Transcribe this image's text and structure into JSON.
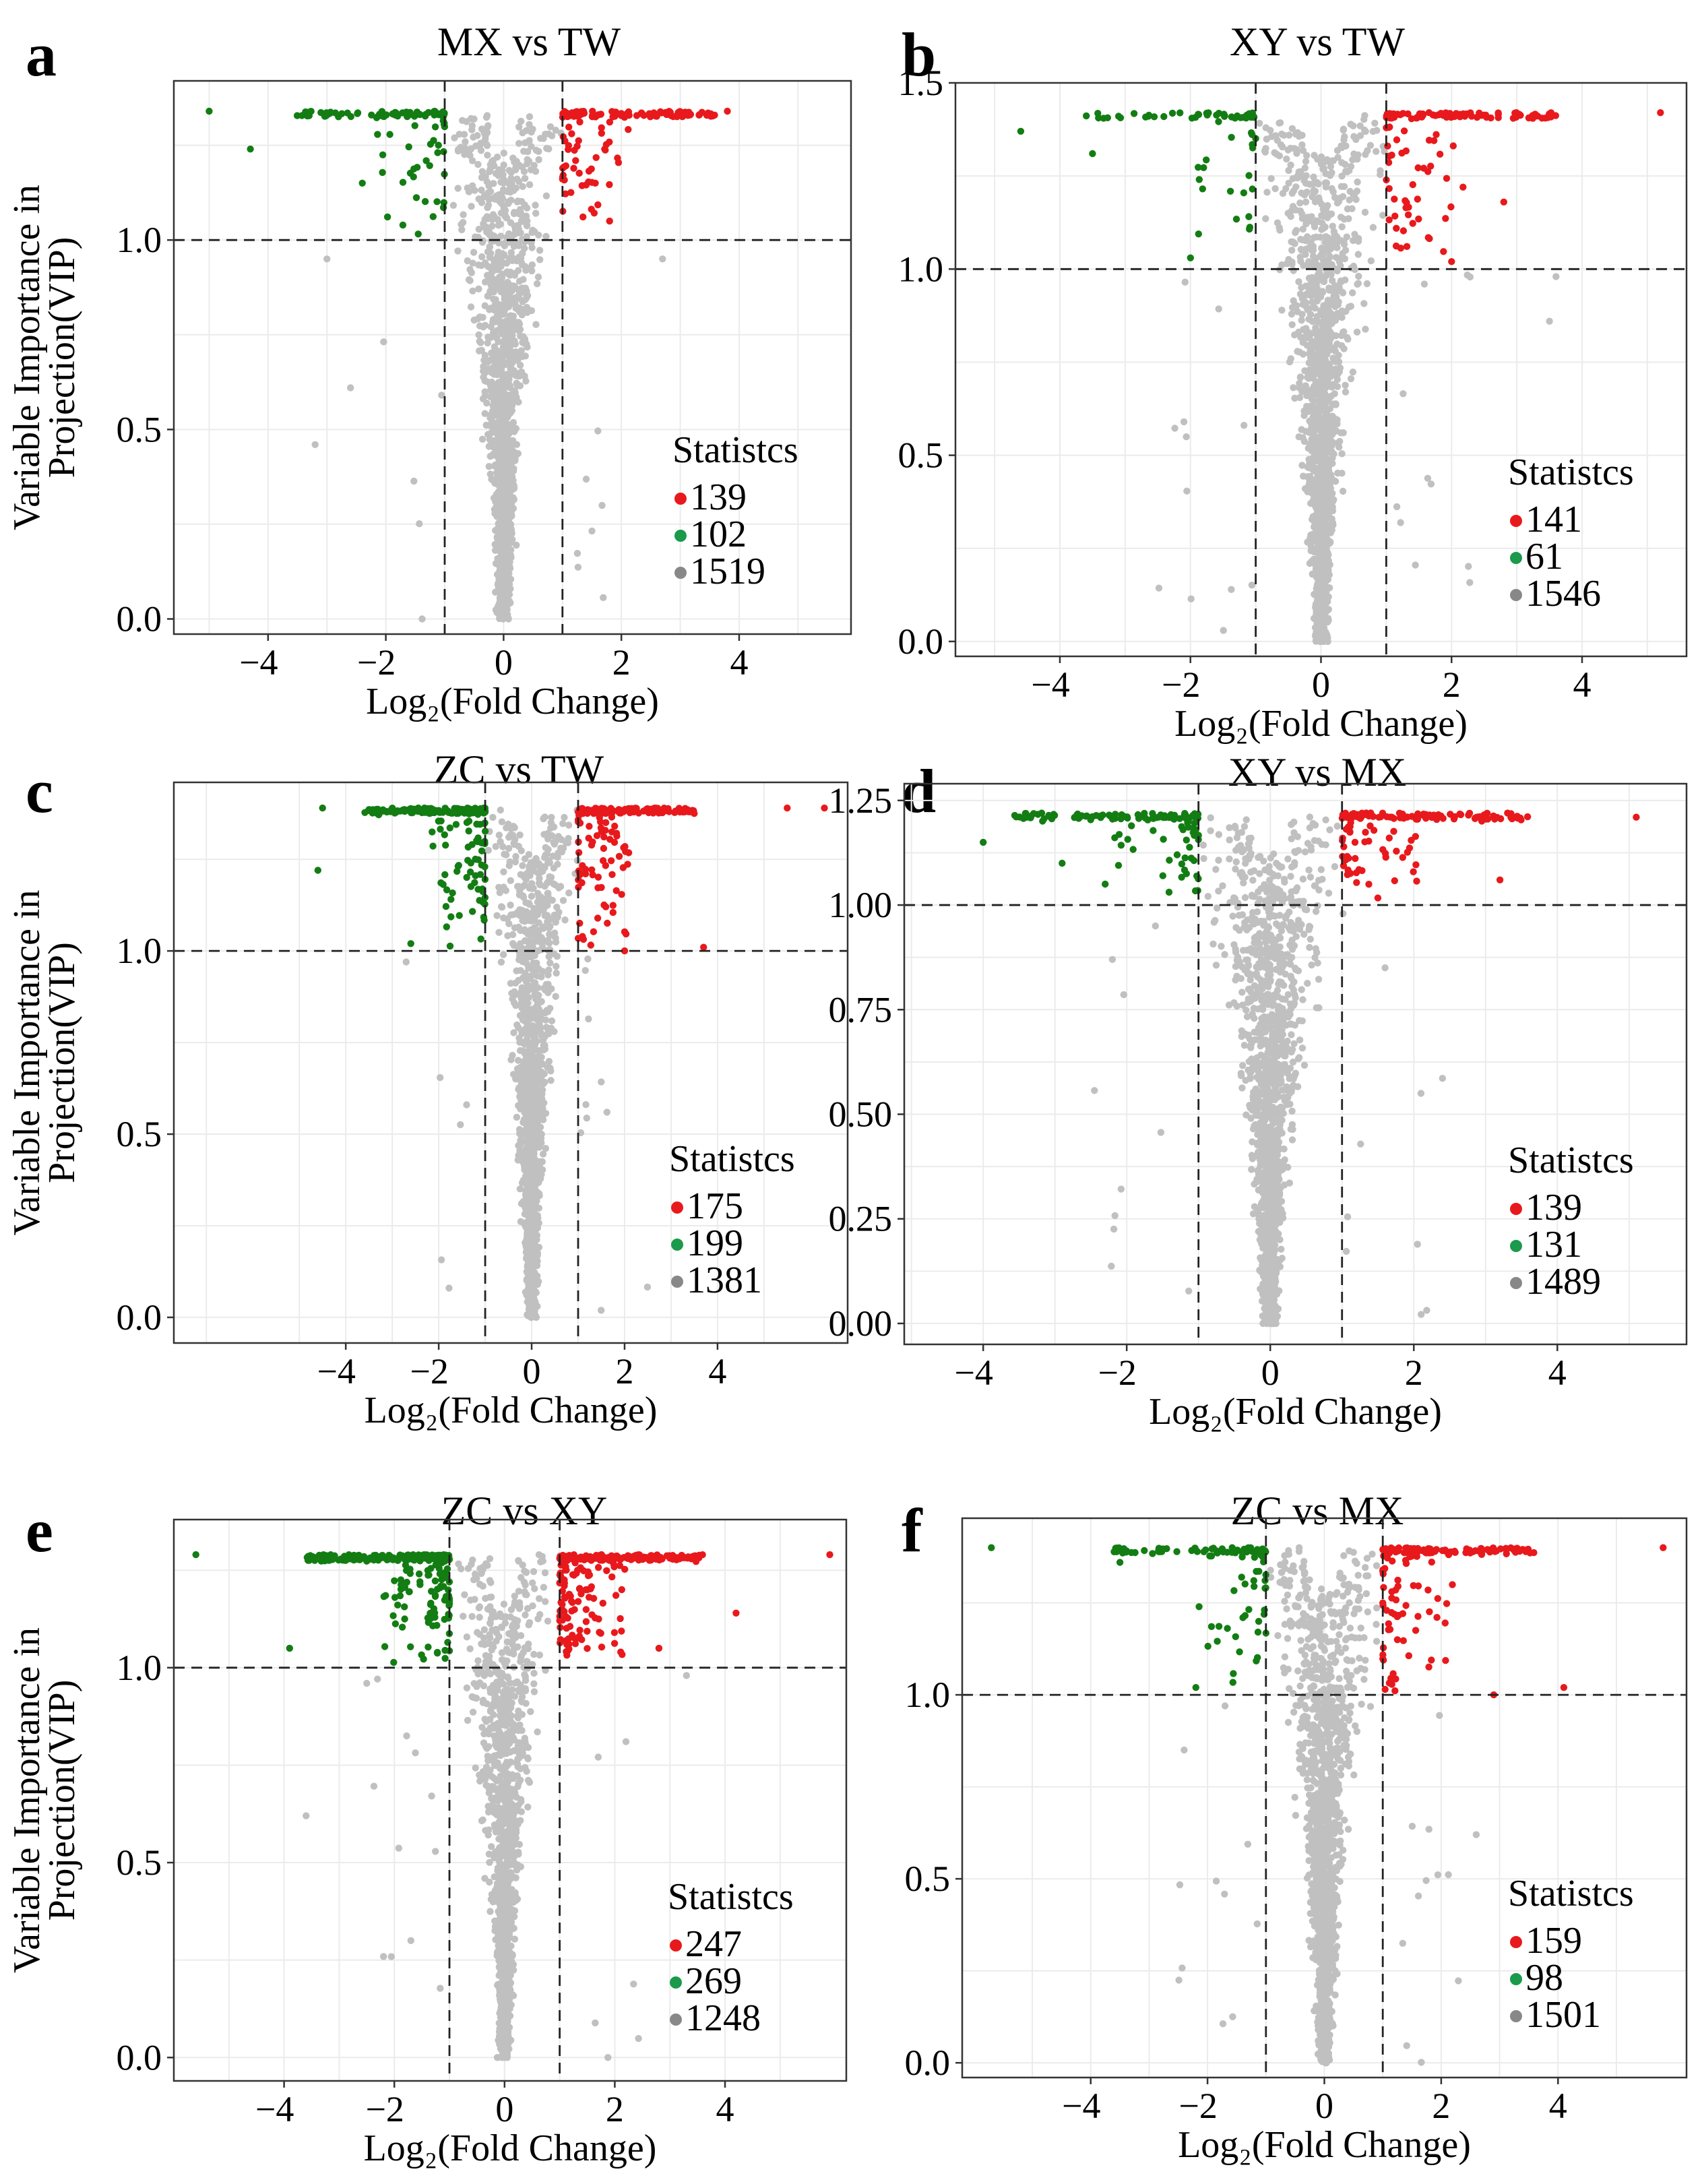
{
  "figure": {
    "point_colors": {
      "up": "#e8191c",
      "down": "#137d13",
      "nosig": "#c0c0c0"
    },
    "legend_dot_colors": {
      "up": "#e8191c",
      "down": "#1a9a4a",
      "nosig": "#888888"
    }
  },
  "chart_data": [
    {
      "panel": "a",
      "type": "scatter",
      "title": "MX vs TW",
      "xlabel": "Log₂(Fold Change)",
      "ylabel": [
        "Variable Importance in",
        "Projection(VIP)"
      ],
      "xlim": [
        -5.6,
        5.9
      ],
      "ylim": [
        -0.04,
        1.42
      ],
      "xticks": [
        -4,
        -2,
        0,
        2,
        4
      ],
      "yticks": [
        0.0,
        0.5,
        1.0
      ],
      "ytick_labels": [
        "0.0",
        "0.5",
        "1.0"
      ],
      "xgrid_minor": [
        -5,
        -3,
        -1,
        1,
        3,
        5
      ],
      "ygrid_minor": [
        0.25,
        0.75,
        1.25
      ],
      "thresholds": {
        "log2fc": [
          -1,
          1
        ],
        "vip": 1.0
      },
      "vip_max": 1.34,
      "legend": {
        "title": "Statistcs",
        "up": "139",
        "down": "102",
        "nosig": "1519",
        "position": "bottom-right"
      },
      "counts": {
        "up": 139,
        "down": 102,
        "nosig": 1519
      },
      "outliers": [
        {
          "x": -5.0,
          "y": 1.34,
          "group": "down"
        },
        {
          "x": -4.3,
          "y": 1.24,
          "group": "down"
        },
        {
          "x": -2.4,
          "y": 1.15,
          "group": "down"
        },
        {
          "x": -3.0,
          "y": 0.95,
          "group": "nosig"
        },
        {
          "x": -3.2,
          "y": 0.46,
          "group": "nosig"
        },
        {
          "x": -2.6,
          "y": 0.61,
          "group": "nosig"
        },
        {
          "x": 3.8,
          "y": 1.34,
          "group": "up"
        },
        {
          "x": 1.8,
          "y": 1.05,
          "group": "up"
        },
        {
          "x": 2.7,
          "y": 0.95,
          "group": "nosig"
        }
      ]
    },
    {
      "panel": "b",
      "type": "scatter",
      "title": "XY vs TW",
      "xlabel": "Log₂(Fold Change)",
      "ylabel": [],
      "xlim": [
        -5.6,
        5.6
      ],
      "ylim": [
        -0.04,
        1.5
      ],
      "xticks": [
        -4,
        -2,
        0,
        2,
        4
      ],
      "yticks": [
        0.0,
        0.5,
        1.0,
        1.5
      ],
      "ytick_labels": [
        "0.0",
        "0.5",
        "1.0",
        "1.5"
      ],
      "xgrid_minor": [
        -5,
        -3,
        -1,
        1,
        3,
        5
      ],
      "ygrid_minor": [
        0.25,
        0.75,
        1.25
      ],
      "thresholds": {
        "log2fc": [
          -1,
          1
        ],
        "vip": 1.0
      },
      "vip_max": 1.42,
      "legend": {
        "title": "Statistcs",
        "up": "141",
        "down": "61",
        "nosig": "1546",
        "position": "bottom-right"
      },
      "counts": {
        "up": 141,
        "down": 61,
        "nosig": 1546
      },
      "outliers": [
        {
          "x": -4.6,
          "y": 1.37,
          "group": "down"
        },
        {
          "x": -3.5,
          "y": 1.31,
          "group": "down"
        },
        {
          "x": -2.0,
          "y": 1.03,
          "group": "down"
        },
        {
          "x": -2.1,
          "y": 0.59,
          "group": "nosig"
        },
        {
          "x": 5.2,
          "y": 1.42,
          "group": "up"
        },
        {
          "x": 2.8,
          "y": 1.18,
          "group": "up"
        },
        {
          "x": 3.5,
          "y": 0.86,
          "group": "nosig"
        },
        {
          "x": 3.6,
          "y": 0.98,
          "group": "nosig"
        },
        {
          "x": 2.0,
          "y": 1.02,
          "group": "up"
        }
      ]
    },
    {
      "panel": "c",
      "type": "scatter",
      "title": "ZC vs TW",
      "xlabel": "Log₂(Fold Change)",
      "ylabel": [
        "Variable Importance in",
        "Projection(VIP)"
      ],
      "xlim": [
        -7.7,
        6.8
      ],
      "ylim": [
        -0.07,
        1.46
      ],
      "xticks": [
        -4,
        -2,
        0,
        2,
        4
      ],
      "yticks": [
        0.0,
        0.5,
        1.0
      ],
      "ytick_labels": [
        "0.0",
        "0.5",
        "1.0"
      ],
      "xgrid_minor": [
        -7,
        -5,
        -3,
        -1,
        1,
        3,
        5
      ],
      "ygrid_minor": [
        0.25,
        0.75,
        1.25
      ],
      "thresholds": {
        "log2fc": [
          -1,
          1
        ],
        "vip": 1.0
      },
      "vip_max": 1.39,
      "legend": {
        "title": "Statistcs",
        "up": "175",
        "down": "199",
        "nosig": "1381",
        "position": "bottom-right"
      },
      "counts": {
        "up": 175,
        "down": 199,
        "nosig": 1381
      },
      "outliers": [
        {
          "x": -4.5,
          "y": 1.39,
          "group": "down"
        },
        {
          "x": -4.6,
          "y": 1.22,
          "group": "down"
        },
        {
          "x": -2.7,
          "y": 0.97,
          "group": "nosig"
        },
        {
          "x": -2.6,
          "y": 1.02,
          "group": "down"
        },
        {
          "x": -1.4,
          "y": 0.58,
          "group": "nosig"
        },
        {
          "x": 6.3,
          "y": 1.39,
          "group": "up"
        },
        {
          "x": 5.5,
          "y": 1.39,
          "group": "up"
        },
        {
          "x": 3.7,
          "y": 1.01,
          "group": "up"
        },
        {
          "x": 2.0,
          "y": 1.0,
          "group": "up"
        }
      ]
    },
    {
      "panel": "d",
      "type": "scatter",
      "title": "XY vs MX",
      "xlabel": "Log₂(Fold Change)",
      "ylabel": [],
      "xlim": [
        -5.1,
        5.8
      ],
      "ylim": [
        -0.05,
        1.29
      ],
      "xticks": [
        -4,
        -2,
        0,
        2,
        4
      ],
      "yticks": [
        0.0,
        0.25,
        0.5,
        0.75,
        1.0,
        1.25
      ],
      "ytick_labels": [
        "0.00",
        "0.25",
        "0.50",
        "0.75",
        "1.00",
        "1.25"
      ],
      "xgrid_minor": [
        -5,
        -3,
        -1,
        1,
        3,
        5
      ],
      "ygrid_minor": [
        0.125,
        0.375,
        0.625,
        0.875,
        1.125
      ],
      "thresholds": {
        "log2fc": [
          -1,
          1
        ],
        "vip": 1.0
      },
      "vip_max": 1.22,
      "legend": {
        "title": "Statistcs",
        "up": "139",
        "down": "131",
        "nosig": "1489",
        "position": "bottom-right"
      },
      "counts": {
        "up": 139,
        "down": 131,
        "nosig": 1489
      },
      "outliers": [
        {
          "x": -4.0,
          "y": 1.15,
          "group": "down"
        },
        {
          "x": -2.9,
          "y": 1.1,
          "group": "down"
        },
        {
          "x": -2.3,
          "y": 1.05,
          "group": "down"
        },
        {
          "x": -2.2,
          "y": 0.87,
          "group": "nosig"
        },
        {
          "x": -1.6,
          "y": 0.95,
          "group": "nosig"
        },
        {
          "x": 5.1,
          "y": 1.21,
          "group": "up"
        },
        {
          "x": 3.2,
          "y": 1.06,
          "group": "up"
        },
        {
          "x": 2.1,
          "y": 0.55,
          "group": "nosig"
        },
        {
          "x": 1.6,
          "y": 0.85,
          "group": "nosig"
        }
      ]
    },
    {
      "panel": "e",
      "type": "scatter",
      "title": "ZC vs XY",
      "xlabel": "Log₂(Fold Change)",
      "ylabel": [
        "Variable Importance in",
        "Projection(VIP)"
      ],
      "xlim": [
        -6.0,
        6.2
      ],
      "ylim": [
        -0.06,
        1.38
      ],
      "xticks": [
        -4,
        -2,
        0,
        2,
        4
      ],
      "yticks": [
        0.0,
        0.5,
        1.0
      ],
      "ytick_labels": [
        "0.0",
        "0.5",
        "1.0"
      ],
      "xgrid_minor": [
        -5,
        -3,
        -1,
        1,
        3,
        5
      ],
      "ygrid_minor": [
        0.25,
        0.75,
        1.25
      ],
      "thresholds": {
        "log2fc": [
          -1,
          1
        ],
        "vip": 1.0
      },
      "vip_max": 1.29,
      "legend": {
        "title": "Statistcs",
        "up": "247",
        "down": "269",
        "nosig": "1248",
        "position": "bottom-right"
      },
      "counts": {
        "up": 247,
        "down": 269,
        "nosig": 1248
      },
      "outliers": [
        {
          "x": -5.6,
          "y": 1.29,
          "group": "down"
        },
        {
          "x": -3.9,
          "y": 1.05,
          "group": "down"
        },
        {
          "x": -3.6,
          "y": 0.62,
          "group": "nosig"
        },
        {
          "x": -2.5,
          "y": 0.96,
          "group": "nosig"
        },
        {
          "x": -1.7,
          "y": 0.3,
          "group": "nosig"
        },
        {
          "x": 5.9,
          "y": 1.29,
          "group": "up"
        },
        {
          "x": 4.2,
          "y": 1.14,
          "group": "up"
        },
        {
          "x": 2.8,
          "y": 1.05,
          "group": "up"
        },
        {
          "x": 3.3,
          "y": 0.98,
          "group": "nosig"
        }
      ]
    },
    {
      "panel": "f",
      "type": "scatter",
      "title": "ZC vs MX",
      "xlabel": "Log₂(Fold Change)",
      "ylabel": [],
      "xlim": [
        -6.2,
        6.2
      ],
      "ylim": [
        -0.04,
        1.48
      ],
      "xticks": [
        -4,
        -2,
        0,
        2,
        4
      ],
      "yticks": [
        0.0,
        0.5,
        1.0
      ],
      "ytick_labels": [
        "0.0",
        "0.5",
        "1.0"
      ],
      "xgrid_minor": [
        -5,
        -3,
        -1,
        1,
        3,
        5
      ],
      "ygrid_minor": [
        0.25,
        0.75,
        1.25
      ],
      "thresholds": {
        "log2fc": [
          -1,
          1
        ],
        "vip": 1.0
      },
      "vip_max": 1.4,
      "legend": {
        "title": "Statistcs",
        "up": "159",
        "down": "98",
        "nosig": "1501",
        "position": "bottom-right"
      },
      "counts": {
        "up": 159,
        "down": 98,
        "nosig": 1501
      },
      "outliers": [
        {
          "x": -5.7,
          "y": 1.4,
          "group": "down"
        },
        {
          "x": -3.5,
          "y": 1.36,
          "group": "down"
        },
        {
          "x": -2.2,
          "y": 1.02,
          "group": "down"
        },
        {
          "x": -1.7,
          "y": 0.97,
          "group": "nosig"
        },
        {
          "x": -2.4,
          "y": 0.85,
          "group": "nosig"
        },
        {
          "x": 5.8,
          "y": 1.4,
          "group": "up"
        },
        {
          "x": 4.1,
          "y": 1.02,
          "group": "up"
        },
        {
          "x": 2.9,
          "y": 1.0,
          "group": "up"
        },
        {
          "x": 2.6,
          "y": 0.62,
          "group": "nosig"
        }
      ]
    }
  ]
}
